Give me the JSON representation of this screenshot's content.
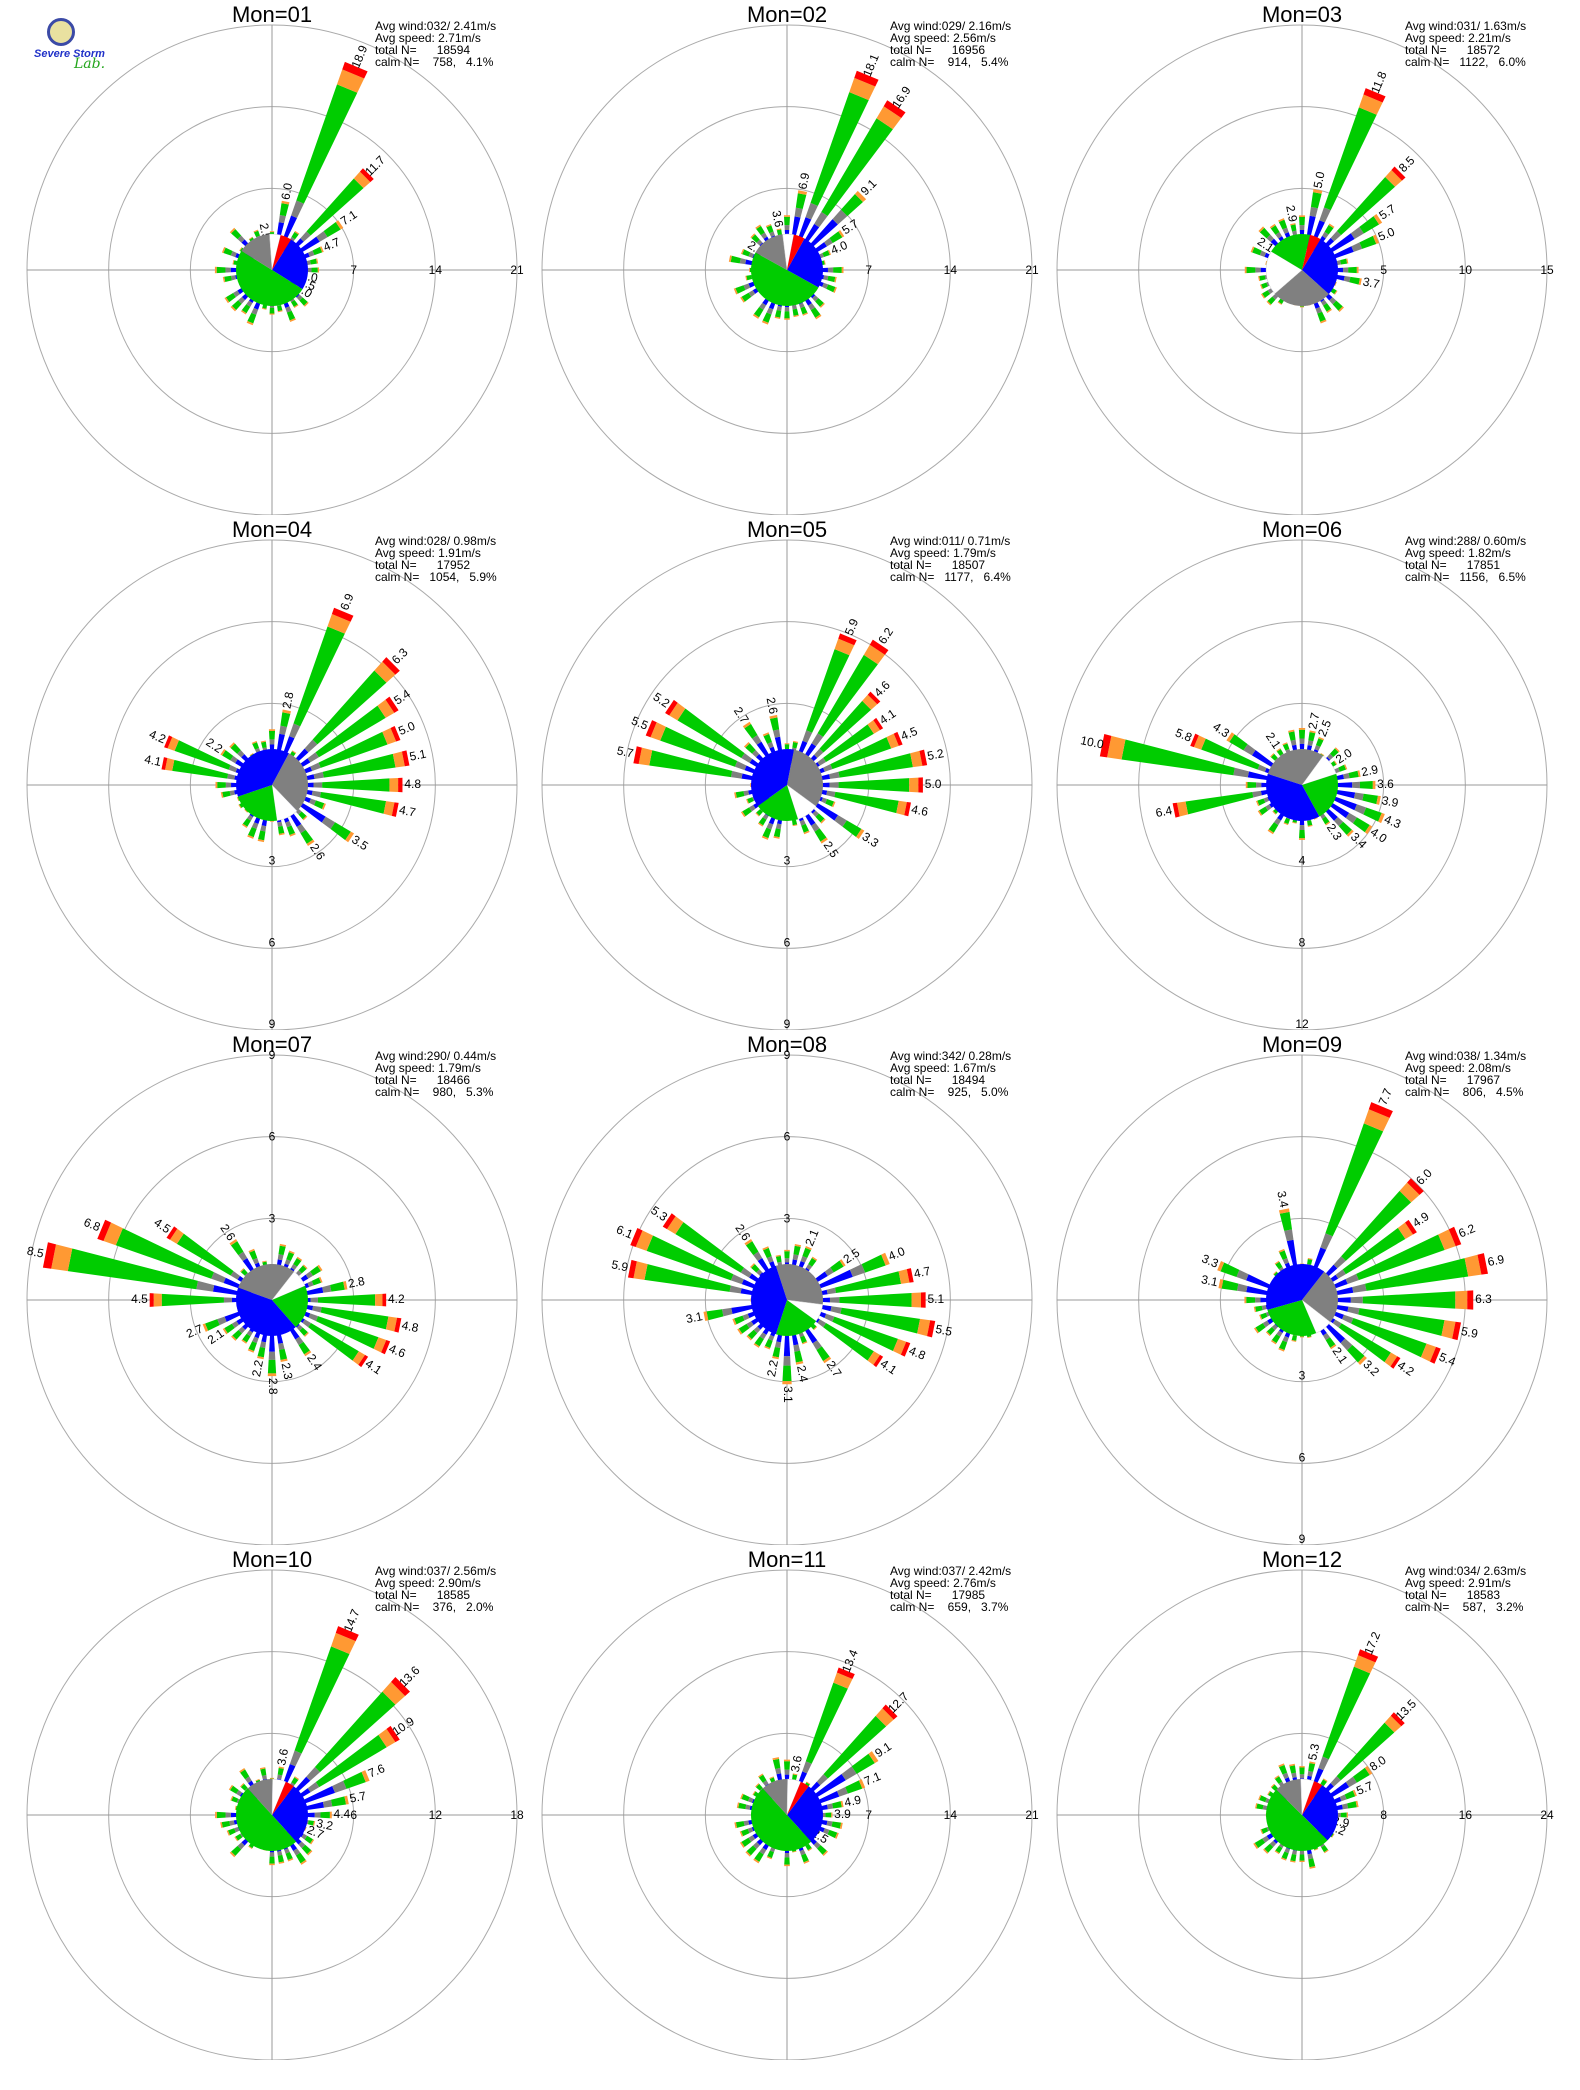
{
  "logo": {
    "line1": "Severe Storm",
    "line2": "Lab."
  },
  "colors": {
    "speed_0_1": "#0000ff",
    "speed_1_2": "#808080",
    "speed_2_3": "#00cc00",
    "speed_3_4": "#ff9933",
    "speed_4_up": "#ff0000",
    "calm": "#ffffff",
    "ring": "#aaaaaa",
    "axis": "#999999"
  },
  "chart_data": [
    {
      "type": "windrose",
      "title": "Mon=01",
      "info": [
        "Avg wind:032/ 2.41m/s",
        "Avg speed: 2.71m/s",
        "total N=      18594",
        "calm N=    758,   4.1%"
      ],
      "ring_labels": [
        "7",
        "14",
        "21"
      ],
      "ring_side": "right",
      "rmax": 21,
      "avg_dir_deg": 32,
      "peak_labels": [
        {
          "dir": 11.25,
          "value": "6.0"
        },
        {
          "dir": 22.5,
          "value": "18.9"
        },
        {
          "dir": 45,
          "value": "11.7"
        },
        {
          "dir": 56.25,
          "value": "7.1"
        },
        {
          "dir": 67.5,
          "value": "4.7"
        },
        {
          "dir": 101.25,
          "value": "2.0"
        },
        {
          "dir": 112.5,
          "value": "1.5"
        },
        {
          "dir": 123.75,
          "value": "1.0"
        },
        {
          "dir": 348.75,
          "value": "2.5"
        }
      ],
      "pie_order": [
        "speed_0_1",
        "speed_2_3",
        "speed_1_2",
        "calm",
        "speed_4_up"
      ],
      "pie_shares": [
        0.25,
        0.5,
        0.15,
        0.05,
        0.05
      ]
    },
    {
      "type": "windrose",
      "title": "Mon=02",
      "info": [
        "Avg wind:029/ 2.16m/s",
        "Avg speed: 2.56m/s",
        "total N=      16956",
        "calm N=    914,   5.4%"
      ],
      "ring_labels": [
        "7",
        "14",
        "21"
      ],
      "ring_side": "right",
      "rmax": 21,
      "avg_dir_deg": 29,
      "peak_labels": [
        {
          "dir": 11.25,
          "value": "6.9"
        },
        {
          "dir": 22.5,
          "value": "18.1"
        },
        {
          "dir": 33.75,
          "value": "16.9"
        },
        {
          "dir": 45,
          "value": "9.1"
        },
        {
          "dir": 56.25,
          "value": "5.7"
        },
        {
          "dir": 67.5,
          "value": "4.0"
        },
        {
          "dir": 348.75,
          "value": "3.6"
        },
        {
          "dir": 303.75,
          "value": "2.2"
        }
      ],
      "pie_order": [
        "speed_0_1",
        "speed_2_3",
        "speed_1_2",
        "calm",
        "speed_4_up"
      ],
      "pie_shares": [
        0.25,
        0.5,
        0.15,
        0.05,
        0.05
      ]
    },
    {
      "type": "windrose",
      "title": "Mon=03",
      "info": [
        "Avg wind:031/ 1.63m/s",
        "Avg speed: 2.21m/s",
        "total N=      18572",
        "calm N=   1122,   6.0%"
      ],
      "ring_labels": [
        "5",
        "10",
        "15"
      ],
      "ring_side": "right",
      "rmax": 15,
      "avg_dir_deg": 31,
      "peak_labels": [
        {
          "dir": 11.25,
          "value": "5.0"
        },
        {
          "dir": 22.5,
          "value": "11.8"
        },
        {
          "dir": 45,
          "value": "8.5"
        },
        {
          "dir": 56.25,
          "value": "5.7"
        },
        {
          "dir": 67.5,
          "value": "5.0"
        },
        {
          "dir": 101.25,
          "value": "3.7"
        },
        {
          "dir": 348.75,
          "value": "2.9"
        },
        {
          "dir": 303.75,
          "value": "2.1"
        }
      ],
      "pie_order": [
        "speed_0_1",
        "speed_1_2",
        "calm",
        "speed_2_3",
        "speed_4_up"
      ],
      "pie_shares": [
        0.28,
        0.27,
        0.2,
        0.2,
        0.05
      ]
    },
    {
      "type": "windrose",
      "title": "Mon=04",
      "info": [
        "Avg wind:028/ 0.98m/s",
        "Avg speed: 1.91m/s",
        "total N=      17952",
        "calm N=   1054,   5.9%"
      ],
      "ring_labels": [
        "3",
        "6",
        "9"
      ],
      "ring_side": "bottom",
      "rmax": 9,
      "avg_dir_deg": 28,
      "peak_labels": [
        {
          "dir": 11.25,
          "value": "2.8"
        },
        {
          "dir": 22.5,
          "value": "6.9"
        },
        {
          "dir": 45,
          "value": "6.3"
        },
        {
          "dir": 56.25,
          "value": "5.4"
        },
        {
          "dir": 67.5,
          "value": "5.0"
        },
        {
          "dir": 78.75,
          "value": "5.1"
        },
        {
          "dir": 90,
          "value": "4.8"
        },
        {
          "dir": 101.25,
          "value": "4.7"
        },
        {
          "dir": 123.75,
          "value": "3.5"
        },
        {
          "dir": 146.25,
          "value": "2.6"
        },
        {
          "dir": 292.5,
          "value": "4.2"
        },
        {
          "dir": 281.25,
          "value": "4.1"
        },
        {
          "dir": 303.75,
          "value": "2.2"
        }
      ],
      "pie_order": [
        "speed_1_2",
        "calm",
        "speed_2_3",
        "speed_0_1"
      ],
      "pie_shares": [
        0.3,
        0.1,
        0.22,
        0.38
      ]
    },
    {
      "type": "windrose",
      "title": "Mon=05",
      "info": [
        "Avg wind:011/ 0.71m/s",
        "Avg speed: 1.79m/s",
        "total N=      18507",
        "calm N=   1177,   6.4%"
      ],
      "ring_labels": [
        "3",
        "6",
        "9"
      ],
      "ring_side": "bottom",
      "rmax": 9,
      "avg_dir_deg": 11,
      "peak_labels": [
        {
          "dir": 22.5,
          "value": "5.9"
        },
        {
          "dir": 33.75,
          "value": "6.2"
        },
        {
          "dir": 45,
          "value": "4.6"
        },
        {
          "dir": 56.25,
          "value": "4.1"
        },
        {
          "dir": 67.5,
          "value": "4.5"
        },
        {
          "dir": 78.75,
          "value": "5.2"
        },
        {
          "dir": 90,
          "value": "5.0"
        },
        {
          "dir": 101.25,
          "value": "4.6"
        },
        {
          "dir": 123.75,
          "value": "3.3"
        },
        {
          "dir": 146.25,
          "value": "2.5"
        },
        {
          "dir": 281.25,
          "value": "5.7"
        },
        {
          "dir": 292.5,
          "value": "5.5"
        },
        {
          "dir": 303.75,
          "value": "5.2"
        },
        {
          "dir": 326.25,
          "value": "2.7"
        },
        {
          "dir": 348.75,
          "value": "2.6"
        }
      ],
      "pie_order": [
        "speed_1_2",
        "calm",
        "speed_2_3",
        "speed_0_1"
      ],
      "pie_shares": [
        0.32,
        0.1,
        0.2,
        0.38
      ]
    },
    {
      "type": "windrose",
      "title": "Mon=06",
      "info": [
        "Avg wind:288/ 0.60m/s",
        "Avg speed: 1.82m/s",
        "total N=      17851",
        "calm N=   1156,   6.5%"
      ],
      "ring_labels": [
        "4",
        "8",
        "12"
      ],
      "ring_side": "bottom",
      "rmax": 12,
      "avg_dir_deg": 288,
      "peak_labels": [
        {
          "dir": 11.25,
          "value": "2.7"
        },
        {
          "dir": 22.5,
          "value": "2.5"
        },
        {
          "dir": 56.25,
          "value": "2.0"
        },
        {
          "dir": 78.75,
          "value": "2.9"
        },
        {
          "dir": 90,
          "value": "3.6"
        },
        {
          "dir": 101.25,
          "value": "3.9"
        },
        {
          "dir": 112.5,
          "value": "4.3"
        },
        {
          "dir": 123.75,
          "value": "4.0"
        },
        {
          "dir": 135,
          "value": "3.4"
        },
        {
          "dir": 146.25,
          "value": "2.3"
        },
        {
          "dir": 281.25,
          "value": "10.0"
        },
        {
          "dir": 258.75,
          "value": "6.4"
        },
        {
          "dir": 292.5,
          "value": "5.8"
        },
        {
          "dir": 303.75,
          "value": "4.3"
        },
        {
          "dir": 326.25,
          "value": "2.1"
        }
      ],
      "pie_order": [
        "speed_1_2",
        "calm",
        "speed_2_3",
        "speed_0_1"
      ],
      "pie_shares": [
        0.3,
        0.1,
        0.22,
        0.38
      ]
    },
    {
      "type": "windrose",
      "title": "Mon=07",
      "info": [
        "Avg wind:290/ 0.44m/s",
        "Avg speed: 1.79m/s",
        "total N=      18466",
        "calm N=    980,   5.3%"
      ],
      "ring_labels": [
        "3",
        "6",
        "9"
      ],
      "ring_side": "top",
      "rmax": 9,
      "avg_dir_deg": 290,
      "peak_labels": [
        {
          "dir": 78.75,
          "value": "2.8"
        },
        {
          "dir": 90,
          "value": "4.2"
        },
        {
          "dir": 101.25,
          "value": "4.8"
        },
        {
          "dir": 112.5,
          "value": "4.6"
        },
        {
          "dir": 123.75,
          "value": "4.1"
        },
        {
          "dir": 146.25,
          "value": "2.4"
        },
        {
          "dir": 180,
          "value": "2.8"
        },
        {
          "dir": 168.75,
          "value": "2.3"
        },
        {
          "dir": 191.25,
          "value": "2.2"
        },
        {
          "dir": 270,
          "value": "4.5"
        },
        {
          "dir": 281.25,
          "value": "8.5"
        },
        {
          "dir": 292.5,
          "value": "6.8"
        },
        {
          "dir": 303.75,
          "value": "4.5"
        },
        {
          "dir": 326.25,
          "value": "2.6"
        },
        {
          "dir": 247.5,
          "value": "2.7"
        },
        {
          "dir": 236.25,
          "value": "2.1"
        }
      ],
      "pie_order": [
        "speed_1_2",
        "calm",
        "speed_2_3",
        "speed_0_1"
      ],
      "pie_shares": [
        0.3,
        0.08,
        0.2,
        0.42
      ]
    },
    {
      "type": "windrose",
      "title": "Mon=08",
      "info": [
        "Avg wind:342/ 0.28m/s",
        "Avg speed: 1.67m/s",
        "total N=      18494",
        "calm N=    925,   5.0%"
      ],
      "ring_labels": [
        "3",
        "6",
        "9"
      ],
      "ring_side": "top",
      "rmax": 9,
      "avg_dir_deg": 342,
      "peak_labels": [
        {
          "dir": 22.5,
          "value": "2.1"
        },
        {
          "dir": 56.25,
          "value": "2.5"
        },
        {
          "dir": 67.5,
          "value": "4.0"
        },
        {
          "dir": 78.75,
          "value": "4.7"
        },
        {
          "dir": 90,
          "value": "5.1"
        },
        {
          "dir": 101.25,
          "value": "5.5"
        },
        {
          "dir": 112.5,
          "value": "4.8"
        },
        {
          "dir": 123.75,
          "value": "4.1"
        },
        {
          "dir": 146.25,
          "value": "2.7"
        },
        {
          "dir": 168.75,
          "value": "2.4"
        },
        {
          "dir": 180,
          "value": "3.1"
        },
        {
          "dir": 191.25,
          "value": "2.2"
        },
        {
          "dir": 258.75,
          "value": "3.1"
        },
        {
          "dir": 281.25,
          "value": "5.9"
        },
        {
          "dir": 292.5,
          "value": "6.1"
        },
        {
          "dir": 303.75,
          "value": "5.3"
        },
        {
          "dir": 326.25,
          "value": "2.6"
        }
      ],
      "pie_order": [
        "speed_1_2",
        "calm",
        "speed_2_3",
        "speed_0_1"
      ],
      "pie_shares": [
        0.32,
        0.08,
        0.2,
        0.4
      ]
    },
    {
      "type": "windrose",
      "title": "Mon=09",
      "info": [
        "Avg wind:038/ 1.34m/s",
        "Avg speed: 2.08m/s",
        "total N=      17967",
        "calm N=    806,   4.5%"
      ],
      "ring_labels": [
        "3",
        "6",
        "9"
      ],
      "ring_side": "bottom",
      "rmax": 9,
      "avg_dir_deg": 38,
      "peak_labels": [
        {
          "dir": 22.5,
          "value": "7.7"
        },
        {
          "dir": 45,
          "value": "6.0"
        },
        {
          "dir": 56.25,
          "value": "4.9"
        },
        {
          "dir": 67.5,
          "value": "6.2"
        },
        {
          "dir": 78.75,
          "value": "6.9"
        },
        {
          "dir": 90,
          "value": "6.3"
        },
        {
          "dir": 101.25,
          "value": "5.9"
        },
        {
          "dir": 112.5,
          "value": "5.4"
        },
        {
          "dir": 123.75,
          "value": "4.2"
        },
        {
          "dir": 135,
          "value": "3.2"
        },
        {
          "dir": 146.25,
          "value": "2.1"
        },
        {
          "dir": 348.75,
          "value": "3.4"
        },
        {
          "dir": 292.5,
          "value": "3.3"
        },
        {
          "dir": 281.25,
          "value": "3.1"
        }
      ],
      "pie_order": [
        "speed_1_2",
        "calm",
        "speed_2_3",
        "speed_0_1"
      ],
      "pie_shares": [
        0.25,
        0.08,
        0.27,
        0.4
      ]
    },
    {
      "type": "windrose",
      "title": "Mon=10",
      "info": [
        "Avg wind:037/ 2.56m/s",
        "Avg speed: 2.90m/s",
        "total N=      18585",
        "calm N=    376,   2.0%"
      ],
      "ring_labels": [
        "6",
        "12",
        "18"
      ],
      "ring_side": "right",
      "rmax": 18,
      "avg_dir_deg": 37,
      "peak_labels": [
        {
          "dir": 11.25,
          "value": "3.6"
        },
        {
          "dir": 22.5,
          "value": "14.7"
        },
        {
          "dir": 45,
          "value": "13.6"
        },
        {
          "dir": 56.25,
          "value": "10.9"
        },
        {
          "dir": 67.5,
          "value": "7.6"
        },
        {
          "dir": 78.75,
          "value": "5.7"
        },
        {
          "dir": 90,
          "value": "4.4"
        },
        {
          "dir": 101.25,
          "value": "3.2"
        },
        {
          "dir": 112.5,
          "value": "2.7"
        }
      ],
      "pie_order": [
        "speed_0_1",
        "speed_2_3",
        "speed_1_2",
        "calm",
        "speed_4_up"
      ],
      "pie_shares": [
        0.28,
        0.5,
        0.12,
        0.06,
        0.04
      ]
    },
    {
      "type": "windrose",
      "title": "Mon=11",
      "info": [
        "Avg wind:037/ 2.42m/s",
        "Avg speed: 2.76m/s",
        "total N=      17985",
        "calm N=    659,   3.7%"
      ],
      "ring_labels": [
        "7",
        "14",
        "21"
      ],
      "ring_side": "right",
      "rmax": 21,
      "avg_dir_deg": 37,
      "peak_labels": [
        {
          "dir": 11.25,
          "value": "3.6"
        },
        {
          "dir": 22.5,
          "value": "13.4"
        },
        {
          "dir": 45,
          "value": "12.7"
        },
        {
          "dir": 56.25,
          "value": "9.1"
        },
        {
          "dir": 67.5,
          "value": "7.1"
        },
        {
          "dir": 78.75,
          "value": "4.9"
        },
        {
          "dir": 90,
          "value": "3.9"
        },
        {
          "dir": 123.75,
          "value": "2.5"
        }
      ],
      "pie_order": [
        "speed_0_1",
        "speed_2_3",
        "speed_1_2",
        "calm",
        "speed_4_up"
      ],
      "pie_shares": [
        0.28,
        0.5,
        0.12,
        0.06,
        0.04
      ]
    },
    {
      "type": "windrose",
      "title": "Mon=12",
      "info": [
        "Avg wind:034/ 2.63m/s",
        "Avg speed: 2.91m/s",
        "total N=      18583",
        "calm N=    587,   3.2%"
      ],
      "ring_labels": [
        "8",
        "16",
        "24"
      ],
      "ring_side": "right",
      "rmax": 24,
      "avg_dir_deg": 34,
      "peak_labels": [
        {
          "dir": 11.25,
          "value": "5.3"
        },
        {
          "dir": 22.5,
          "value": "17.2"
        },
        {
          "dir": 45,
          "value": "13.5"
        },
        {
          "dir": 56.25,
          "value": "8.0"
        },
        {
          "dir": 67.5,
          "value": "5.7"
        },
        {
          "dir": 101.25,
          "value": "2.9"
        },
        {
          "dir": 112.5,
          "value": "2.2"
        }
      ],
      "pie_order": [
        "speed_0_1",
        "speed_2_3",
        "speed_1_2",
        "calm",
        "speed_4_up"
      ],
      "pie_shares": [
        0.28,
        0.5,
        0.12,
        0.06,
        0.04
      ]
    }
  ]
}
